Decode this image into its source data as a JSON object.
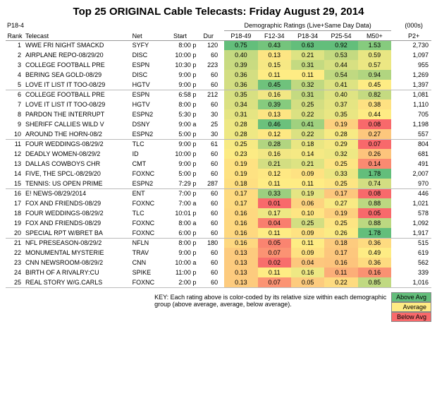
{
  "title": "Top 25 ORIGINAL Cable Telecasts:  Friday August 29, 2014",
  "corner_label": "P18-49",
  "header_demo": "Demographic Ratings (Live+Same Day Data)",
  "header_000s": "(000s)",
  "columns": {
    "rank": "Rank",
    "telecast": "Telecast",
    "net": "Net",
    "start": "Start",
    "dur": "Dur",
    "p1849": "P18-49",
    "f1234": "F12-34",
    "p1834": "P18-34",
    "p2554": "P25-54",
    "m50": "M50+",
    "p2": "P2+"
  },
  "colors": {
    "above": "#63be7b",
    "avg": "#ffeb84",
    "below": "#f8696b",
    "mid_high": "#b1d580",
    "mid_low": "#fdcb7d",
    "white": "#ffffff",
    "faint": "#fef9e7"
  },
  "legend": {
    "above": "Above Avg",
    "avg": "Average",
    "below": "Below Avg"
  },
  "key": "KEY: Each rating above is color-coded by its relative size within each demographic group (above average, average, below average).",
  "rows": [
    {
      "rank": 1,
      "tel": "WWE FRI NIGHT SMACKD",
      "net": "SYFY",
      "start": "8:00 p",
      "dur": 120,
      "r": [
        [
          "0.75",
          "#63be7b"
        ],
        [
          "0.43",
          "#74c47c"
        ],
        [
          "0.63",
          "#63be7b"
        ],
        [
          "0.92",
          "#63be7b"
        ],
        [
          "1.53",
          "#86cb7e"
        ]
      ],
      "p2": "2,730"
    },
    {
      "rank": 2,
      "tel": "AIRPLANE REPO-08/29/20",
      "net": "DISC",
      "start": "10:00 p",
      "dur": 60,
      "r": [
        [
          "0.40",
          "#c4da81"
        ],
        [
          "0.13",
          "#fde583"
        ],
        [
          "0.21",
          "#dde383"
        ],
        [
          "0.53",
          "#c4da81"
        ],
        [
          "0.59",
          "#e8e683"
        ]
      ],
      "p2": "1,097"
    },
    {
      "rank": 3,
      "tel": "COLLEGE FOOTBALL PRE",
      "net": "ESPN",
      "start": "10:30 p",
      "dur": 223,
      "r": [
        [
          "0.39",
          "#c9db81"
        ],
        [
          "0.15",
          "#f6e884"
        ],
        [
          "0.31",
          "#c4da81"
        ],
        [
          "0.44",
          "#d7e082"
        ],
        [
          "0.57",
          "#ece783"
        ]
      ],
      "p2": "955"
    },
    {
      "rank": 4,
      "tel": "BERING SEA GOLD-08/29",
      "net": "DISC",
      "start": "9:00 p",
      "dur": 60,
      "r": [
        [
          "0.36",
          "#d3de82"
        ],
        [
          "0.11",
          "#feec84"
        ],
        [
          "0.11",
          "#feec84"
        ],
        [
          "0.54",
          "#c0d981"
        ],
        [
          "0.94",
          "#b1d580"
        ]
      ],
      "p2": "1,269"
    },
    {
      "rank": 5,
      "tel": "LOVE IT LIST IT TOO-08/29",
      "net": "HGTV",
      "start": "9:00 p",
      "dur": 60,
      "r": [
        [
          "0.36",
          "#d3de82"
        ],
        [
          "0.45",
          "#6fc27c"
        ],
        [
          "0.32",
          "#c0d981"
        ],
        [
          "0.41",
          "#dde383"
        ],
        [
          "0.45",
          "#feec84"
        ]
      ],
      "p2": "1,397"
    },
    {
      "rank": 6,
      "tel": "COLLEGE FOOTBALL PRE",
      "net": "ESPN",
      "start": "6:58 p",
      "dur": 212,
      "r": [
        [
          "0.35",
          "#d7e082"
        ],
        [
          "0.16",
          "#f2e784"
        ],
        [
          "0.31",
          "#c4da81"
        ],
        [
          "0.40",
          "#dfe483"
        ],
        [
          "0.82",
          "#c4da81"
        ]
      ],
      "p2": "1,081"
    },
    {
      "rank": 7,
      "tel": "LOVE IT LIST IT TOO-08/29",
      "net": "HGTV",
      "start": "8:00 p",
      "dur": 60,
      "r": [
        [
          "0.34",
          "#dbe182"
        ],
        [
          "0.39",
          "#86cb7e"
        ],
        [
          "0.25",
          "#d3de82"
        ],
        [
          "0.37",
          "#e5e583"
        ],
        [
          "0.38",
          "#fee182"
        ]
      ],
      "p2": "1,110"
    },
    {
      "rank": 8,
      "tel": "PARDON THE INTERRUPT",
      "net": "ESPN2",
      "start": "5:30 p",
      "dur": 30,
      "r": [
        [
          "0.31",
          "#e5e583"
        ],
        [
          "0.13",
          "#fde583"
        ],
        [
          "0.22",
          "#dbe182"
        ],
        [
          "0.35",
          "#e9e683"
        ],
        [
          "0.44",
          "#feec84"
        ]
      ],
      "p2": "705"
    },
    {
      "rank": 9,
      "tel": "SHERIFF CALLIES WILD V",
      "net": "DSNY",
      "start": "9:00 a",
      "dur": 25,
      "r": [
        [
          "0.28",
          "#eee884"
        ],
        [
          "0.46",
          "#6bc17c"
        ],
        [
          "0.41",
          "#a0d17f"
        ],
        [
          "0.19",
          "#fdd07f"
        ],
        [
          "0.08",
          "#f8696b"
        ]
      ],
      "p2": "1,198"
    },
    {
      "rank": 10,
      "tel": "AROUND THE HORN-08/2",
      "net": "ESPN2",
      "start": "5:00 p",
      "dur": 30,
      "r": [
        [
          "0.28",
          "#eee884"
        ],
        [
          "0.12",
          "#fee883"
        ],
        [
          "0.22",
          "#dbe182"
        ],
        [
          "0.28",
          "#f7ea84"
        ],
        [
          "0.27",
          "#fdc77d"
        ]
      ],
      "p2": "557"
    },
    {
      "rank": 11,
      "tel": "FOUR WEDDINGS-08/29/2",
      "net": "TLC",
      "start": "9:00 p",
      "dur": 61,
      "r": [
        [
          "0.25",
          "#f7ea84"
        ],
        [
          "0.28",
          "#b1d580"
        ],
        [
          "0.18",
          "#e9e683"
        ],
        [
          "0.29",
          "#f5e984"
        ],
        [
          "0.07",
          "#f8696b"
        ]
      ],
      "p2": "804"
    },
    {
      "rank": 12,
      "tel": "DEADLY WOMEN-08/29/2",
      "net": "ID",
      "start": "10:00 p",
      "dur": 60,
      "r": [
        [
          "0.23",
          "#fceb84"
        ],
        [
          "0.16",
          "#f2e784"
        ],
        [
          "0.14",
          "#f5e984"
        ],
        [
          "0.32",
          "#eee884"
        ],
        [
          "0.26",
          "#fdc47c"
        ]
      ],
      "p2": "681"
    },
    {
      "rank": 13,
      "tel": "DALLAS COWBOYS CHR",
      "net": "CMT",
      "start": "9:00 p",
      "dur": 60,
      "r": [
        [
          "0.19",
          "#fee282"
        ],
        [
          "0.21",
          "#d3de82"
        ],
        [
          "0.21",
          "#dde383"
        ],
        [
          "0.25",
          "#fde583"
        ],
        [
          "0.14",
          "#fa8a71"
        ]
      ],
      "p2": "491"
    },
    {
      "rank": 14,
      "tel": "FIVE, THE SPCL-08/29/20",
      "net": "FOXNC",
      "start": "5:00 p",
      "dur": 60,
      "r": [
        [
          "0.19",
          "#fee282"
        ],
        [
          "0.12",
          "#fee883"
        ],
        [
          "0.09",
          "#fee282"
        ],
        [
          "0.33",
          "#ece783"
        ],
        [
          "1.78",
          "#63be7b"
        ]
      ],
      "p2": "2,007"
    },
    {
      "rank": 15,
      "tel": "TENNIS: US OPEN PRIME",
      "net": "ESPN2",
      "start": "7:29 p",
      "dur": 287,
      "r": [
        [
          "0.18",
          "#fedf81"
        ],
        [
          "0.11",
          "#feec84"
        ],
        [
          "0.11",
          "#feec84"
        ],
        [
          "0.25",
          "#fde583"
        ],
        [
          "0.74",
          "#d3de82"
        ]
      ],
      "p2": "970"
    },
    {
      "rank": 16,
      "tel": "E! NEWS-08/29/2014",
      "net": "ENT",
      "start": "7:00 p",
      "dur": 60,
      "r": [
        [
          "0.17",
          "#fedb80"
        ],
        [
          "0.33",
          "#9ccf7f"
        ],
        [
          "0.19",
          "#e5e583"
        ],
        [
          "0.17",
          "#fdc77d"
        ],
        [
          "0.08",
          "#f8696b"
        ]
      ],
      "p2": "446"
    },
    {
      "rank": 17,
      "tel": "FOX AND FRIENDS-08/29",
      "net": "FOXNC",
      "start": "7:00 a",
      "dur": 60,
      "r": [
        [
          "0.17",
          "#fedb80"
        ],
        [
          "0.01",
          "#f8696b"
        ],
        [
          "0.06",
          "#fdd380"
        ],
        [
          "0.27",
          "#f9ea84"
        ],
        [
          "0.88",
          "#bcd881"
        ]
      ],
      "p2": "1,021"
    },
    {
      "rank": 18,
      "tel": "FOUR WEDDINGS-08/29/2",
      "net": "TLC",
      "start": "10:01 p",
      "dur": 60,
      "r": [
        [
          "0.16",
          "#fed880"
        ],
        [
          "0.17",
          "#eee884"
        ],
        [
          "0.10",
          "#fee583"
        ],
        [
          "0.19",
          "#fdd07f"
        ],
        [
          "0.05",
          "#f8696b"
        ]
      ],
      "p2": "578"
    },
    {
      "rank": 19,
      "tel": "FOX AND FRIENDS-08/29",
      "net": "FOXNC",
      "start": "8:00 a",
      "dur": 60,
      "r": [
        [
          "0.16",
          "#fed880"
        ],
        [
          "0.04",
          "#f97e6e"
        ],
        [
          "0.25",
          "#d3de82"
        ],
        [
          "0.25",
          "#fde583"
        ],
        [
          "0.88",
          "#bcd881"
        ]
      ],
      "p2": "1,092"
    },
    {
      "rank": 20,
      "tel": "SPECIAL RPT W/BRET BA",
      "net": "FOXNC",
      "start": "6:00 p",
      "dur": 60,
      "r": [
        [
          "0.16",
          "#fed880"
        ],
        [
          "0.11",
          "#feec84"
        ],
        [
          "0.09",
          "#fee282"
        ],
        [
          "0.26",
          "#fbeb84"
        ],
        [
          "1.78",
          "#63be7b"
        ]
      ],
      "p2": "1,917"
    },
    {
      "rank": 21,
      "tel": "NFL PRESEASON-08/29/2",
      "net": "NFLN",
      "start": "8:00 p",
      "dur": 180,
      "r": [
        [
          "0.16",
          "#fed880"
        ],
        [
          "0.05",
          "#fa8470"
        ],
        [
          "0.11",
          "#feec84"
        ],
        [
          "0.18",
          "#fdcb7e"
        ],
        [
          "0.36",
          "#fedb80"
        ]
      ],
      "p2": "515"
    },
    {
      "rank": 22,
      "tel": "MONUMENTAL MYSTERIE",
      "net": "TRAV",
      "start": "9:00 p",
      "dur": 60,
      "r": [
        [
          "0.13",
          "#fdcb7e"
        ],
        [
          "0.07",
          "#fb9373"
        ],
        [
          "0.09",
          "#fee282"
        ],
        [
          "0.17",
          "#fdc77d"
        ],
        [
          "0.49",
          "#feec84"
        ]
      ],
      "p2": "619"
    },
    {
      "rank": 23,
      "tel": "CNN NEWSROOM-08/29/2",
      "net": "CNN",
      "start": "10:00 a",
      "dur": 60,
      "r": [
        [
          "0.13",
          "#fdcb7e"
        ],
        [
          "0.02",
          "#f86e6c"
        ],
        [
          "0.04",
          "#fdc77d"
        ],
        [
          "0.16",
          "#fdc47c"
        ],
        [
          "0.36",
          "#fedb80"
        ]
      ],
      "p2": "562"
    },
    {
      "rank": 24,
      "tel": "BIRTH OF A RIVALRY:CU",
      "net": "SPIKE",
      "start": "11:00 p",
      "dur": 60,
      "r": [
        [
          "0.13",
          "#fdcb7e"
        ],
        [
          "0.11",
          "#feec84"
        ],
        [
          "0.16",
          "#eee884"
        ],
        [
          "0.11",
          "#fcae78"
        ],
        [
          "0.16",
          "#fa9172"
        ]
      ],
      "p2": "339"
    },
    {
      "rank": 25,
      "tel": "REAL STORY W/G.CARLS",
      "net": "FOXNC",
      "start": "2:00 p",
      "dur": 60,
      "r": [
        [
          "0.13",
          "#fdcb7e"
        ],
        [
          "0.07",
          "#fb9373"
        ],
        [
          "0.05",
          "#fdcb7e"
        ],
        [
          "0.22",
          "#fedb80"
        ],
        [
          "0.85",
          "#c0d981"
        ]
      ],
      "p2": "1,016"
    }
  ]
}
